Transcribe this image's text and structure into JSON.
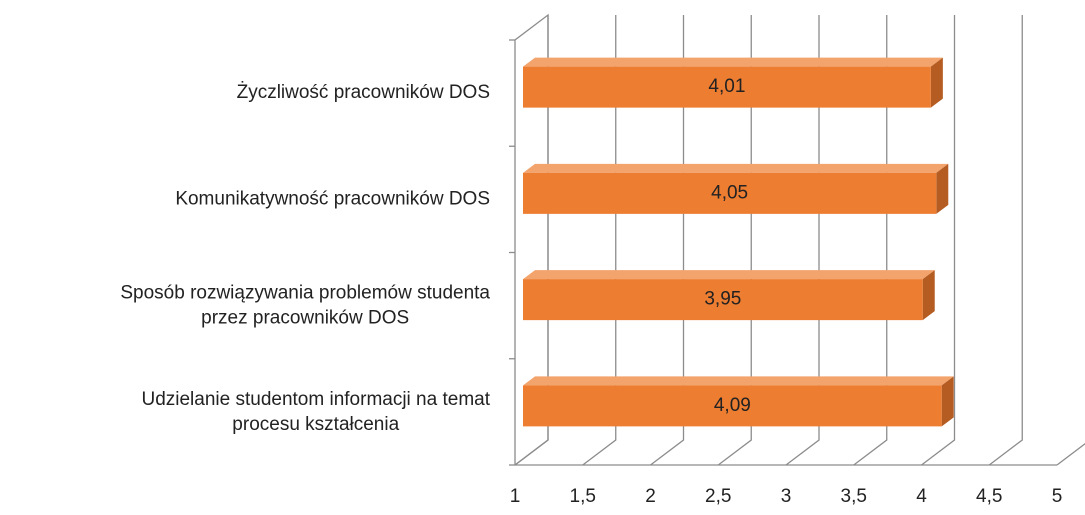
{
  "chart_data": {
    "type": "bar3d",
    "orientation": "horizontal",
    "categories": [
      "Życzliwość pracowników DOS",
      "Komunikatywność pracowników DOS",
      "Sposób rozwiązywania problemów studenta\nprzez pracowników DOS",
      "Udzielanie studentom informacji na temat\nprocesu kształcenia"
    ],
    "values": [
      4.01,
      4.05,
      3.95,
      4.09
    ],
    "value_labels": [
      "4,01",
      "4,05",
      "3,95",
      "4,09"
    ],
    "color": "#ed7d31",
    "xlim": [
      1,
      5
    ],
    "xticks": [
      1,
      {
        "value": 1.5,
        "label": "1,5"
      },
      2,
      {
        "value": 2.5,
        "label": "2,5"
      },
      3,
      {
        "value": 3.5,
        "label": "3,5"
      },
      4,
      {
        "value": 4.5,
        "label": "4,5"
      },
      5
    ],
    "grid": true
  }
}
